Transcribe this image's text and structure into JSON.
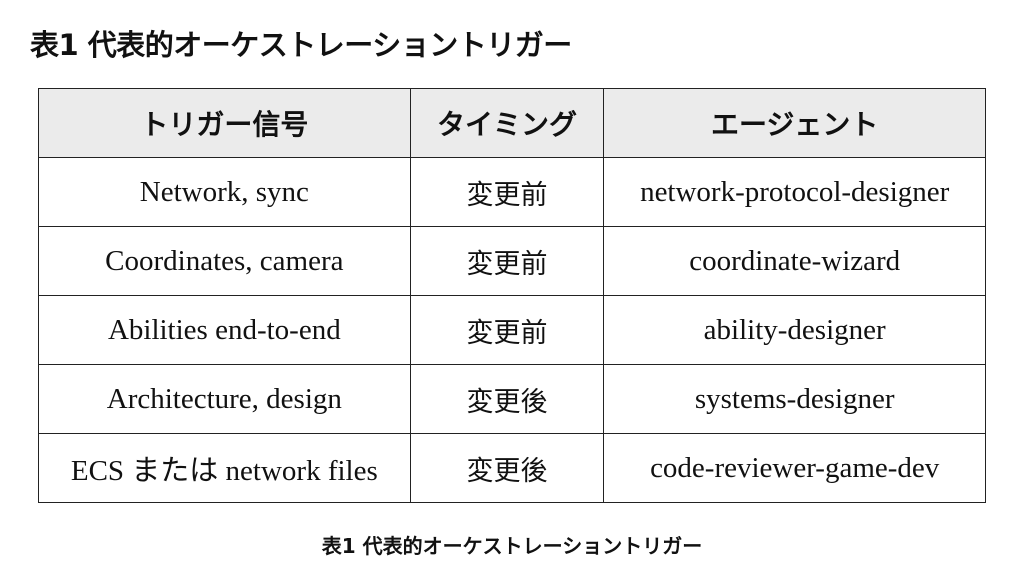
{
  "title": "表1 代表的オーケストレーショントリガー",
  "table": {
    "headers": [
      "トリガー信号",
      "タイミング",
      "エージェント"
    ],
    "rows": [
      [
        "Network, sync",
        "変更前",
        "network-protocol-designer"
      ],
      [
        "Coordinates, camera",
        "変更前",
        "coordinate-wizard"
      ],
      [
        "Abilities end-to-end",
        "変更前",
        "ability-designer"
      ],
      [
        "Architecture, design",
        "変更後",
        "systems-designer"
      ],
      [
        "ECS または network files",
        "変更後",
        "code-reviewer-game-dev"
      ]
    ]
  },
  "caption": "表1 代表的オーケストレーショントリガー"
}
